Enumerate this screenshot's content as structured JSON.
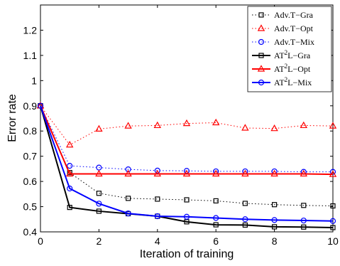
{
  "chart_data": {
    "type": "line",
    "xlabel": "Iteration of training",
    "ylabel": "Error rate",
    "xlim": [
      0,
      10
    ],
    "ylim": [
      0.4,
      1.3
    ],
    "xticks": [
      0,
      2,
      4,
      6,
      8,
      10
    ],
    "yticks": [
      0.4,
      0.5,
      0.6,
      0.7,
      0.8,
      0.9,
      1,
      1.1,
      1.2
    ],
    "grid": false,
    "legend_position": "top-right",
    "x": [
      0,
      1,
      2,
      3,
      4,
      5,
      6,
      7,
      8,
      9,
      10
    ],
    "series": [
      {
        "name": "Adv.T−Gra",
        "legend_base": "Adv.T−Gra",
        "legend_sup": "",
        "legend_rest": "",
        "color": "#000000",
        "dash": "1.5,3",
        "marker": "square",
        "width": 1,
        "values": [
          0.9,
          0.635,
          0.553,
          0.533,
          0.53,
          0.527,
          0.523,
          0.513,
          0.508,
          0.505,
          0.503
        ]
      },
      {
        "name": "Adv.T−Opt",
        "legend_base": "Adv.T−Opt",
        "legend_sup": "",
        "legend_rest": "",
        "color": "#ff0000",
        "dash": "1.5,3",
        "marker": "triangle",
        "width": 1,
        "values": [
          0.9,
          0.745,
          0.808,
          0.82,
          0.822,
          0.83,
          0.833,
          0.812,
          0.81,
          0.822,
          0.82
        ]
      },
      {
        "name": "Adv.T−Mix",
        "legend_base": "Adv.T−Mix",
        "legend_sup": "",
        "legend_rest": "",
        "color": "#0000ff",
        "dash": "1.5,3",
        "marker": "circle",
        "width": 1,
        "values": [
          0.9,
          0.662,
          0.655,
          0.648,
          0.643,
          0.642,
          0.64,
          0.64,
          0.64,
          0.638,
          0.638
        ]
      },
      {
        "name": "AT²L−Gra",
        "legend_base": "AT",
        "legend_sup": "2",
        "legend_rest": "L−Gra",
        "color": "#000000",
        "dash": "",
        "marker": "square",
        "width": 2,
        "values": [
          0.9,
          0.497,
          0.482,
          0.472,
          0.462,
          0.44,
          0.428,
          0.427,
          0.42,
          0.419,
          0.417
        ]
      },
      {
        "name": "AT²L−Opt",
        "legend_base": "AT",
        "legend_sup": "2",
        "legend_rest": "L−Opt",
        "color": "#ff0000",
        "dash": "",
        "marker": "triangle",
        "width": 2,
        "values": [
          0.9,
          0.63,
          0.63,
          0.63,
          0.63,
          0.63,
          0.63,
          0.63,
          0.63,
          0.63,
          0.628
        ]
      },
      {
        "name": "AT²L−Mix",
        "legend_base": "AT",
        "legend_sup": "2",
        "legend_rest": "L−Mix",
        "color": "#0000ff",
        "dash": "",
        "marker": "circle",
        "width": 2,
        "values": [
          0.9,
          0.572,
          0.512,
          0.473,
          0.462,
          0.46,
          0.455,
          0.45,
          0.447,
          0.445,
          0.443
        ]
      }
    ]
  }
}
